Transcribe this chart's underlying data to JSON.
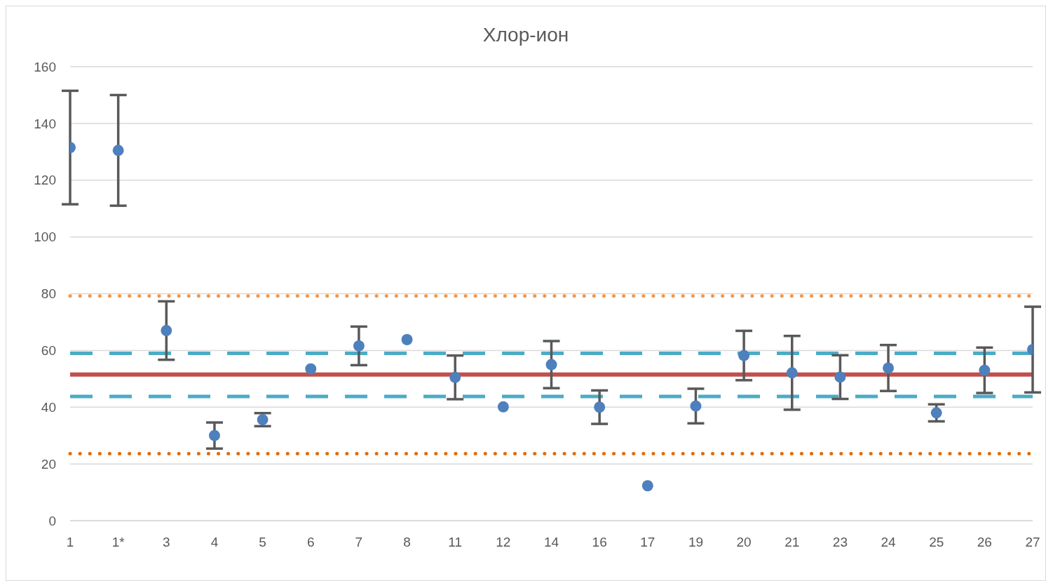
{
  "chart_data": {
    "type": "scatter",
    "title": "Хлор-ион",
    "categories": [
      "1",
      "1*",
      "3",
      "4",
      "5",
      "6",
      "7",
      "8",
      "11",
      "12",
      "14",
      "16",
      "17",
      "19",
      "20",
      "21",
      "23",
      "24",
      "25",
      "26",
      "27"
    ],
    "series": [
      {
        "color": "#4e80bd",
        "values": [
          131.5,
          130.5,
          67,
          30,
          35.6,
          53.5,
          61.6,
          63.8,
          50.5,
          40.1,
          55,
          40,
          12.3,
          40.4,
          58.2,
          52.1,
          50.6,
          53.8,
          38,
          53,
          60.3
        ],
        "errors": [
          20,
          19.5,
          10.3,
          4.6,
          2.3,
          null,
          6.8,
          null,
          7.7,
          null,
          8.3,
          5.9,
          null,
          6.1,
          8.7,
          13,
          7.7,
          8.1,
          3,
          8,
          15.1
        ]
      }
    ],
    "ylim": [
      0,
      160
    ],
    "yticks": [
      0,
      20,
      40,
      60,
      80,
      100,
      120,
      140,
      160
    ],
    "grid": "y",
    "marker": "circle",
    "ref_lines": [
      {
        "axis": "y",
        "value": 51.5,
        "color": "#c0504d",
        "line_style": "solid"
      },
      {
        "axis": "y",
        "value": 59,
        "color": "#4bacc6",
        "line_style": "dashed"
      },
      {
        "axis": "y",
        "value": 43.8,
        "color": "#4bacc6",
        "line_style": "dashed"
      },
      {
        "axis": "y",
        "value": 79.2,
        "color": "#f79646",
        "line_style": "dotted"
      },
      {
        "axis": "y",
        "value": 23.6,
        "color": "#e46c0a",
        "line_style": "dotted"
      }
    ]
  }
}
